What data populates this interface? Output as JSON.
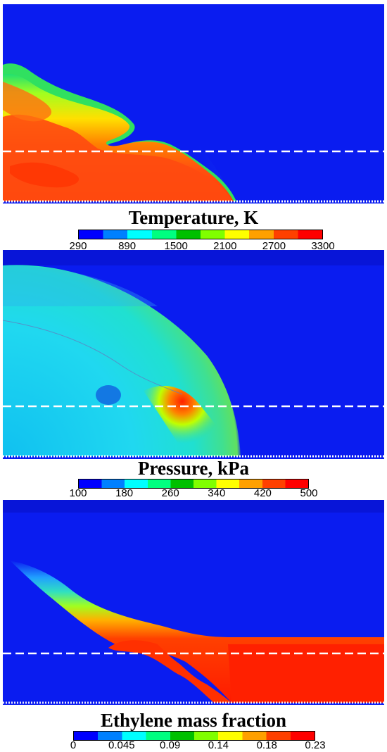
{
  "panels": [
    {
      "id": "temperature",
      "colorbar": {
        "title": "Temperature, K",
        "ticks": [
          "290",
          "890",
          "1500",
          "2100",
          "2700",
          "3300"
        ],
        "colors": [
          "#0000ff",
          "#0080ff",
          "#00ffff",
          "#00ff80",
          "#00c000",
          "#80ff00",
          "#ffff00",
          "#ffa000",
          "#ff4000",
          "#ff0000"
        ]
      }
    },
    {
      "id": "pressure",
      "colorbar": {
        "title": "Pressure, kPa",
        "ticks": [
          "100",
          "180",
          "260",
          "340",
          "420",
          "500"
        ],
        "colors": [
          "#0000ff",
          "#0080ff",
          "#00ffff",
          "#00ff80",
          "#00c000",
          "#80ff00",
          "#ffff00",
          "#ffa000",
          "#ff4000",
          "#ff0000"
        ]
      }
    },
    {
      "id": "ethylene",
      "colorbar": {
        "title": "Ethylene mass fraction",
        "ticks": [
          "0",
          "0.045",
          "0.09",
          "0.14",
          "0.18",
          "0.23"
        ],
        "colors": [
          "#0000ff",
          "#0080ff",
          "#00ffff",
          "#00ff80",
          "#00c000",
          "#80ff00",
          "#ffff00",
          "#ffa000",
          "#ff4000",
          "#ff0000"
        ]
      }
    }
  ]
}
